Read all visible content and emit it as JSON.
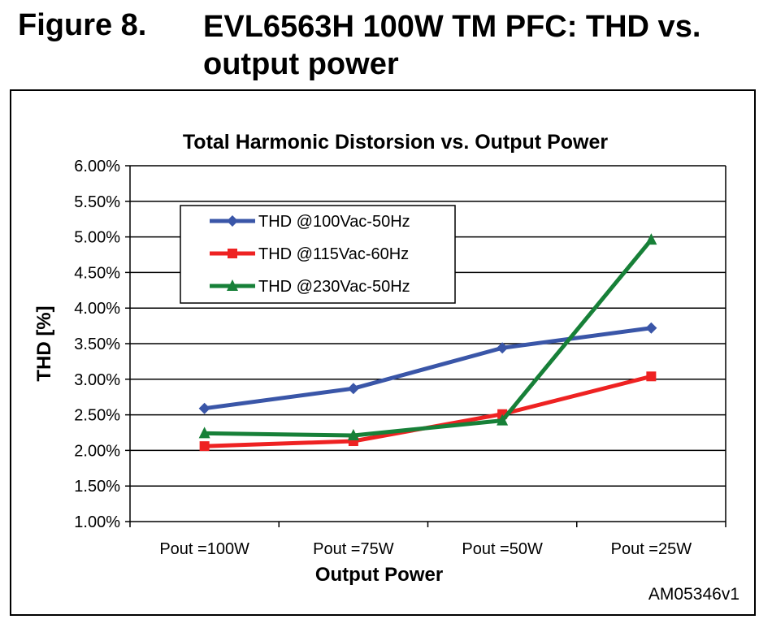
{
  "figure": {
    "number": "Figure 8.",
    "title": "EVL6563H 100W TM PFC: THD vs. output power",
    "code": "AM05346v1"
  },
  "chart_data": {
    "type": "line",
    "title": "Total Harmonic Distorsion vs. Output Power",
    "xlabel": "Output Power",
    "ylabel": "THD [%]",
    "categories": [
      "Pout =100W",
      "Pout =75W",
      "Pout =50W",
      "Pout =25W"
    ],
    "ylim": [
      1.0,
      6.0
    ],
    "yticks": [
      "1.00%",
      "1.50%",
      "2.00%",
      "2.50%",
      "3.00%",
      "3.50%",
      "4.00%",
      "4.50%",
      "5.00%",
      "5.50%",
      "6.00%"
    ],
    "grid": "horizontal",
    "legend": "top-left",
    "series": [
      {
        "name": "THD @100Vac-50Hz",
        "color": "#3a56a8",
        "marker": "diamond",
        "values": [
          2.59,
          2.87,
          3.44,
          3.72
        ]
      },
      {
        "name": "THD @115Vac-60Hz",
        "color": "#ee2222",
        "marker": "square",
        "values": [
          2.06,
          2.13,
          2.51,
          3.04
        ]
      },
      {
        "name": "THD @230Vac-50Hz",
        "color": "#178038",
        "marker": "triangle",
        "values": [
          2.24,
          2.21,
          2.42,
          4.96
        ]
      }
    ]
  }
}
